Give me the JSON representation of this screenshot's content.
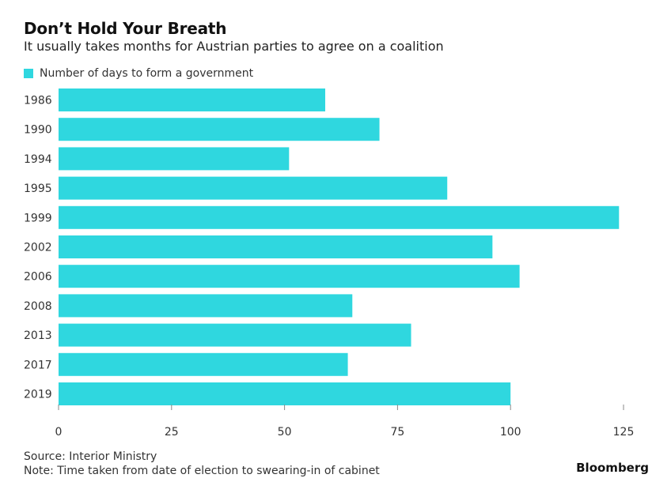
{
  "header": {
    "title": "Don’t Hold Your Breath",
    "subtitle": "It usually takes months for Austrian parties to agree on a coalition"
  },
  "colors": {
    "bar": "#2fd7df",
    "axis": "#888888"
  },
  "chart_data": {
    "type": "bar",
    "orientation": "horizontal",
    "title": "Don’t Hold Your Breath",
    "subtitle": "It usually takes months for Austrian parties to agree on a coalition",
    "categories": [
      "1986",
      "1990",
      "1994",
      "1995",
      "1999",
      "2002",
      "2006",
      "2008",
      "2013",
      "2017",
      "2019"
    ],
    "series": [
      {
        "name": "Number of days to form a government",
        "values": [
          59,
          71,
          51,
          86,
          124,
          96,
          102,
          65,
          78,
          64,
          100
        ]
      }
    ],
    "xlim": [
      0,
      125
    ],
    "xticks": [
      0,
      25,
      50,
      75,
      100,
      125
    ],
    "grid": false,
    "legend": "top-left"
  },
  "footer": {
    "source": "Source: Interior Ministry",
    "note": "Note: Time taken from date of election to swearing-in of cabinet",
    "brand": "Bloomberg"
  }
}
